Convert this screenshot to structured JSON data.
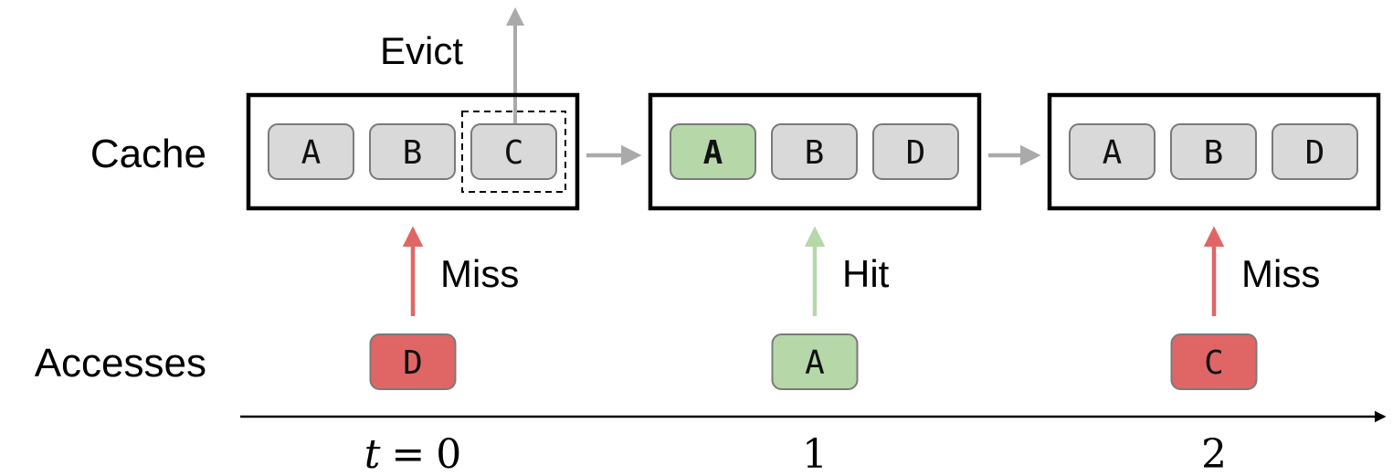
{
  "labels": {
    "cache": "Cache",
    "accesses": "Accesses",
    "evict": "Evict"
  },
  "colors": {
    "slot_fill": "#d9d9d9",
    "slot_stroke": "#7a7a7a",
    "hit": "#b6d7a8",
    "miss": "#e06666",
    "hit_arrow": "#b6d7a8",
    "miss_arrow": "#e06666",
    "gray_arrow": "#aaaaaa",
    "frame": "#000000"
  },
  "timeline": {
    "ticks": [
      {
        "prefix": "t",
        "op": "=",
        "value": "0"
      },
      {
        "prefix": "",
        "op": "",
        "value": "1"
      },
      {
        "prefix": "",
        "op": "",
        "value": "2"
      }
    ]
  },
  "steps": [
    {
      "cache": [
        {
          "label": "A",
          "state": "normal"
        },
        {
          "label": "B",
          "state": "normal"
        },
        {
          "label": "C",
          "state": "evicted"
        }
      ],
      "access": {
        "label": "D",
        "result": "miss",
        "result_label": "Miss"
      }
    },
    {
      "cache": [
        {
          "label": "A",
          "state": "hit"
        },
        {
          "label": "B",
          "state": "normal"
        },
        {
          "label": "D",
          "state": "normal"
        }
      ],
      "access": {
        "label": "A",
        "result": "hit",
        "result_label": "Hit"
      }
    },
    {
      "cache": [
        {
          "label": "A",
          "state": "normal"
        },
        {
          "label": "B",
          "state": "normal"
        },
        {
          "label": "D",
          "state": "normal"
        }
      ],
      "access": {
        "label": "C",
        "result": "miss",
        "result_label": "Miss"
      }
    }
  ]
}
